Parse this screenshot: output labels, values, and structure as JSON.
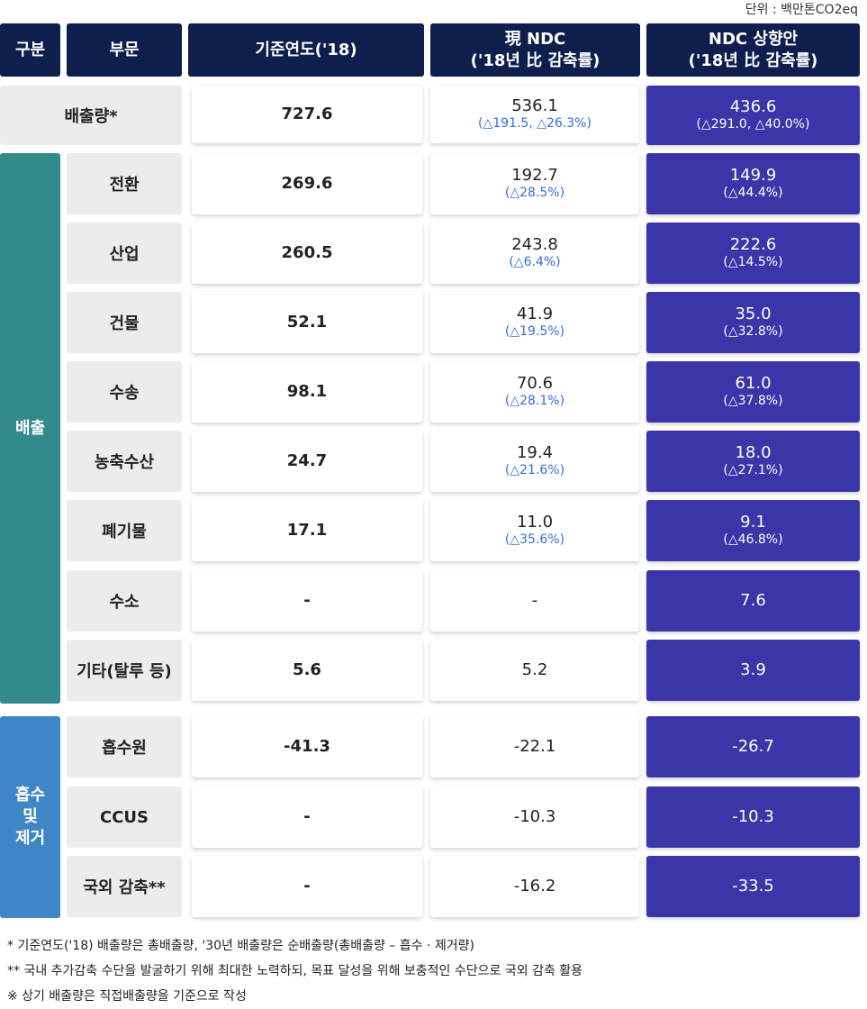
{
  "unit": "단위 : 백만톤CO2eq",
  "headers": {
    "category": "구분",
    "sector": "부문",
    "base": "기준연도('18)",
    "current_line1": "現 NDC",
    "current_line2": "('18년 比 감축률)",
    "upgrade_line1": "NDC 상향안",
    "upgrade_line2": "('18년 比 감축률)"
  },
  "total": {
    "label": "배출량*",
    "base": "727.6",
    "current": "536.1",
    "current_sub": "(△191.5, △26.3%)",
    "upgrade": "436.6",
    "upgrade_sub": "(△291.0, △40.0%)"
  },
  "groups": {
    "emission": "배출",
    "absorb_line1": "흡수",
    "absorb_line2": "및",
    "absorb_line3": "제거"
  },
  "rows": [
    {
      "sector": "전환",
      "base": "269.6",
      "current": "192.7",
      "current_sub": "(△28.5%)",
      "upgrade": "149.9",
      "upgrade_sub": "(△44.4%)"
    },
    {
      "sector": "산업",
      "base": "260.5",
      "current": "243.8",
      "current_sub": "(△6.4%)",
      "upgrade": "222.6",
      "upgrade_sub": "(△14.5%)"
    },
    {
      "sector": "건물",
      "base": "52.1",
      "current": "41.9",
      "current_sub": "(△19.5%)",
      "upgrade": "35.0",
      "upgrade_sub": "(△32.8%)"
    },
    {
      "sector": "수송",
      "base": "98.1",
      "current": "70.6",
      "current_sub": "(△28.1%)",
      "upgrade": "61.0",
      "upgrade_sub": "(△37.8%)"
    },
    {
      "sector": "농축수산",
      "base": "24.7",
      "current": "19.4",
      "current_sub": "(△21.6%)",
      "upgrade": "18.0",
      "upgrade_sub": "(△27.1%)"
    },
    {
      "sector": "폐기물",
      "base": "17.1",
      "current": "11.0",
      "current_sub": "(△35.6%)",
      "upgrade": "9.1",
      "upgrade_sub": "(△46.8%)"
    },
    {
      "sector": "수소",
      "base": "-",
      "current": "-",
      "current_sub": "",
      "upgrade": "7.6",
      "upgrade_sub": ""
    },
    {
      "sector": "기타(탈루 등)",
      "base": "5.6",
      "current": "5.2",
      "current_sub": "",
      "upgrade": "3.9",
      "upgrade_sub": ""
    },
    {
      "sector": "흡수원",
      "base": "-41.3",
      "current": "-22.1",
      "current_sub": "",
      "upgrade": "-26.7",
      "upgrade_sub": ""
    },
    {
      "sector": "CCUS",
      "base": "-",
      "current": "-10.3",
      "current_sub": "",
      "upgrade": "-10.3",
      "upgrade_sub": ""
    },
    {
      "sector": "국외 감축**",
      "base": "-",
      "current": "-16.2",
      "current_sub": "",
      "upgrade": "-33.5",
      "upgrade_sub": ""
    }
  ],
  "notes": [
    "* 기준연도('18) 배출량은 총배출량, '30년 배출량은 순배출량(총배출량 – 흡수 · 제거량)",
    "** 국내 추가감축 수단을 발굴하기 위해 최대한 노력하되, 목표 달성을 위해 보충적인 수단으로 국외 감축 활용",
    "※ 상기 배출량은 직접배출량을 기준으로 작성"
  ]
}
